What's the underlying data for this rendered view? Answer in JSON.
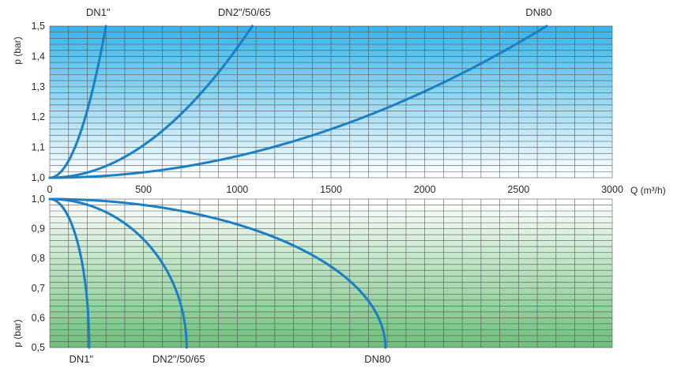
{
  "chart_data": [
    {
      "type": "line",
      "title": "",
      "xlabel": "Q (m³/h)",
      "ylabel": "p (bar)",
      "xlim": [
        0,
        3000
      ],
      "ylim": [
        1.0,
        1.5
      ],
      "x_ticks": [
        "0",
        "500",
        "1000",
        "1500",
        "2000",
        "2500",
        "3000"
      ],
      "y_ticks": [
        "1,0",
        "1,1",
        "1,2",
        "1,3",
        "1,4",
        "1,5"
      ],
      "grid": true,
      "colors": {
        "curve": "#1a7fc4",
        "bg_top": "#36b4e8",
        "bg_bottom": "#ffffff"
      },
      "series": [
        {
          "name": "DN1\"",
          "x": [
            0,
            50,
            100,
            150,
            200,
            250,
            300
          ],
          "y": [
            1.0,
            1.014,
            1.056,
            1.125,
            1.222,
            1.347,
            1.5
          ]
        },
        {
          "name": "DN2\"/50/65",
          "x": [
            0,
            200,
            400,
            600,
            800,
            1000,
            1080
          ],
          "y": [
            1.0,
            1.017,
            1.069,
            1.154,
            1.274,
            1.429,
            1.5
          ]
        },
        {
          "name": "DN80",
          "x": [
            0,
            500,
            1000,
            1500,
            2000,
            2500,
            2650
          ],
          "y": [
            1.0,
            1.018,
            1.071,
            1.16,
            1.285,
            1.445,
            1.5
          ]
        }
      ]
    },
    {
      "type": "line",
      "title": "",
      "xlabel": "",
      "ylabel": "p (bar)",
      "xlim": [
        0,
        3000
      ],
      "ylim": [
        0.5,
        1.0
      ],
      "y_ticks": [
        "0,5",
        "0,6",
        "0,7",
        "0,8",
        "0,9",
        "1,0"
      ],
      "grid": true,
      "colors": {
        "curve": "#1a7fc4",
        "bg_top": "#ffffff",
        "bg_bottom": "#6cc07a"
      },
      "series": [
        {
          "name": "DN1\"",
          "x_max": 210,
          "y_min": 0.5
        },
        {
          "name": "DN2\"/50/65",
          "x_max": 730,
          "y_min": 0.5
        },
        {
          "name": "DN80",
          "x_max": 1790,
          "y_min": 0.5
        }
      ]
    }
  ]
}
